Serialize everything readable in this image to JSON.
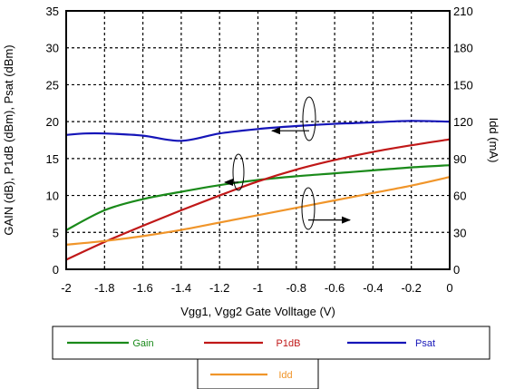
{
  "chart_data": {
    "type": "line",
    "xlabel": "Vgg1, Vgg2  Gate Volltage (V)",
    "ylabel": "GAIN (dB), P1dB (dBm), Psat (dBm)",
    "y2label": "Idd (mA)",
    "xlim": [
      -2,
      0
    ],
    "ylim": [
      0,
      35
    ],
    "y2lim": [
      0,
      210
    ],
    "x_ticks": [
      "-2",
      "-1.8",
      "-1.6",
      "-1.4",
      "-1.2",
      "-1",
      "-0.8",
      "-0.6",
      "-0.4",
      "-0.2",
      "0"
    ],
    "y_ticks": [
      "0",
      "5",
      "10",
      "15",
      "20",
      "25",
      "30",
      "35"
    ],
    "y2_ticks": [
      "0",
      "30",
      "60",
      "90",
      "120",
      "150",
      "180",
      "210"
    ],
    "grid": true,
    "legend_position": "below",
    "series": [
      {
        "name": "Gain",
        "color": "#1a8a1a",
        "axis": "left",
        "x": [
          -2,
          -1.8,
          -1.6,
          -1.4,
          -1.2,
          -1.0,
          -0.8,
          -0.6,
          -0.4,
          -0.2,
          0
        ],
        "values": [
          5.3,
          8.0,
          9.5,
          10.5,
          11.4,
          12.1,
          12.6,
          13.0,
          13.4,
          13.8,
          14.1
        ]
      },
      {
        "name": "P1dB",
        "color": "#c01818",
        "axis": "left",
        "x": [
          -2,
          -1.8,
          -1.6,
          -1.4,
          -1.2,
          -1.0,
          -0.8,
          -0.6,
          -0.4,
          -0.2,
          0
        ],
        "values": [
          1.3,
          3.7,
          5.9,
          8.0,
          10.0,
          11.9,
          13.5,
          14.8,
          15.9,
          16.8,
          17.6
        ]
      },
      {
        "name": "Psat",
        "color": "#1515b8",
        "axis": "left",
        "x": [
          -2,
          -1.9,
          -1.8,
          -1.6,
          -1.4,
          -1.2,
          -1.0,
          -0.8,
          -0.6,
          -0.4,
          -0.2,
          0
        ],
        "values": [
          18.2,
          18.4,
          18.4,
          18.1,
          17.4,
          18.4,
          19.0,
          19.4,
          19.7,
          19.9,
          20.1,
          20.0
        ]
      },
      {
        "name": "Idd",
        "color": "#f0952a",
        "axis": "right",
        "x": [
          -2,
          -1.8,
          -1.6,
          -1.4,
          -1.2,
          -1.0,
          -0.8,
          -0.6,
          -0.4,
          -0.2,
          0
        ],
        "values": [
          20,
          23,
          27,
          32,
          38,
          44,
          50,
          56,
          62,
          68,
          75
        ]
      }
    ]
  }
}
